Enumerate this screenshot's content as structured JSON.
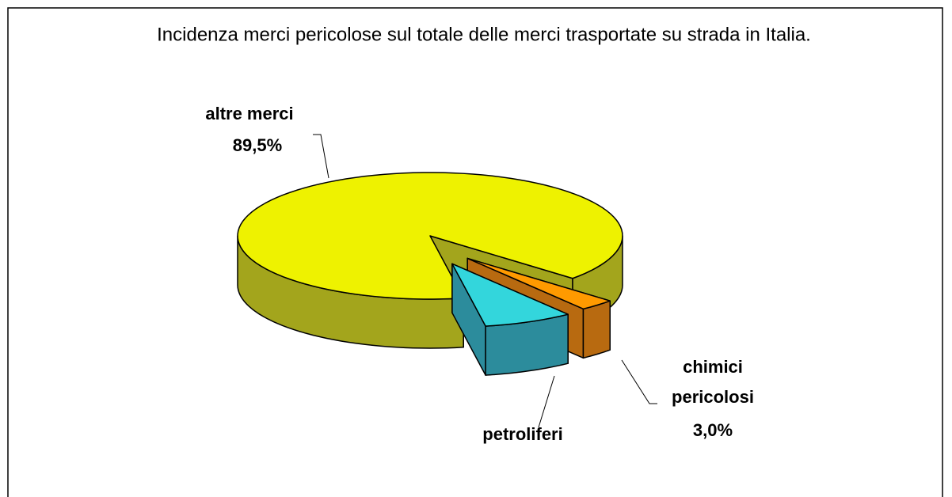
{
  "chart_data": {
    "type": "pie",
    "title": "Incidenza merci pericolose sul totale delle merci trasportate su strada in Italia.",
    "categories": [
      "altre merci",
      "chimici pericolosi",
      "petroliferi"
    ],
    "values": [
      89.5,
      3.0,
      7.5
    ],
    "value_labels": [
      "89,5%",
      "3,0%",
      null
    ],
    "colors": [
      "#eef200",
      "#ff9a00",
      "#33d6dc"
    ],
    "side_colors": [
      "#a3a51c",
      "#b86a10",
      "#2c8c9c"
    ]
  }
}
